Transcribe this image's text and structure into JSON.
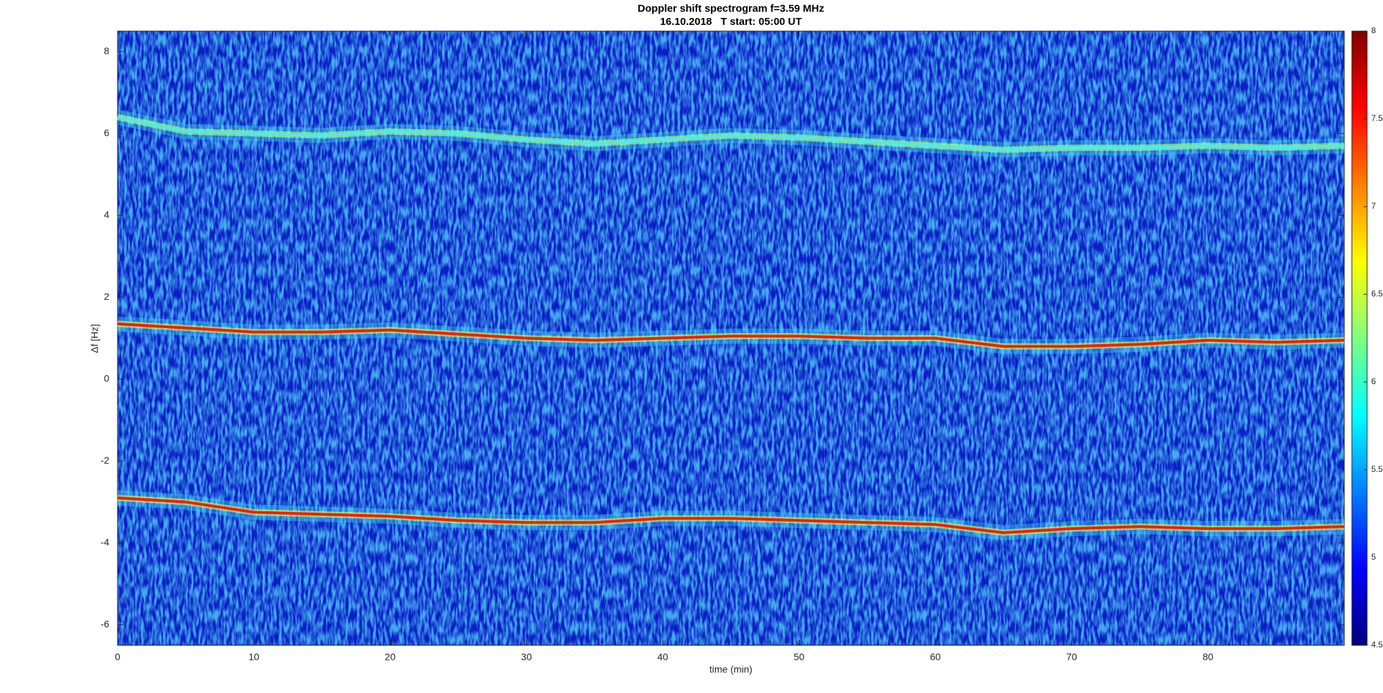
{
  "chart_data": {
    "type": "spectrogram",
    "title": "Doppler shift spectrogram f=3.59 MHz",
    "subtitle": "16.10.2018   T start: 05:00 UT",
    "xlabel": "time (min)",
    "ylabel": "Δf [Hz]",
    "x": [
      0,
      5,
      10,
      15,
      20,
      25,
      30,
      35,
      40,
      45,
      50,
      55,
      60,
      65,
      70,
      75,
      80,
      85,
      90
    ],
    "series": [
      {
        "color": "#40f0ff",
        "values": [
          6.4,
          6.05,
          6.0,
          5.95,
          6.05,
          6.0,
          5.85,
          5.75,
          5.85,
          5.95,
          5.9,
          5.8,
          5.7,
          5.6,
          5.65,
          5.65,
          5.7,
          5.65,
          5.7
        ]
      },
      {
        "color": "#ff1a00",
        "values": [
          1.35,
          1.25,
          1.15,
          1.15,
          1.2,
          1.1,
          1.0,
          0.95,
          1.0,
          1.05,
          1.05,
          1.0,
          1.0,
          0.8,
          0.8,
          0.85,
          0.95,
          0.9,
          0.95
        ]
      },
      {
        "color": "#ff1a00",
        "values": [
          -2.9,
          -3.0,
          -3.25,
          -3.3,
          -3.35,
          -3.45,
          -3.5,
          -3.5,
          -3.4,
          -3.4,
          -3.45,
          -3.5,
          -3.55,
          -3.75,
          -3.65,
          -3.6,
          -3.65,
          -3.65,
          -3.6
        ]
      }
    ],
    "xlim": [
      0,
      90
    ],
    "xticks": [
      0,
      10,
      20,
      30,
      40,
      50,
      60,
      70,
      80
    ],
    "ylim": [
      -6.5,
      8.5
    ],
    "yticks": [
      -6,
      -4,
      -2,
      0,
      2,
      4,
      6,
      8
    ],
    "clim": [
      4.5,
      8
    ],
    "cticks": [
      4.5,
      5,
      5.5,
      6,
      6.5,
      7,
      7.5,
      8
    ],
    "colormap": [
      "#00007f",
      "#0000ff",
      "#007fff",
      "#00ffff",
      "#7fff7f",
      "#ffff00",
      "#ff7f00",
      "#ff0000",
      "#7f0000"
    ]
  }
}
